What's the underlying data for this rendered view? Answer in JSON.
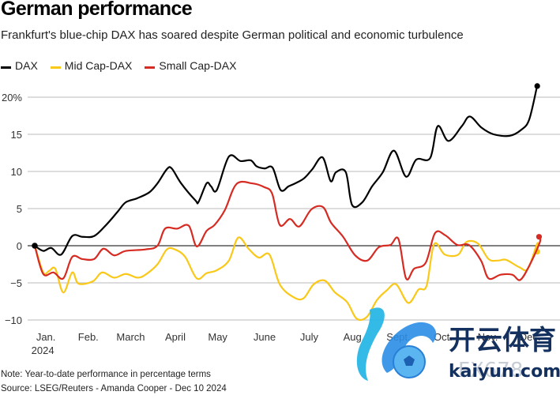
{
  "header": {
    "title": "German performance",
    "subtitle": "Frankfurt's blue-chip DAX has soared despite German political and economic turbulence"
  },
  "legend": [
    {
      "label": "DAX",
      "color": "#000000"
    },
    {
      "label": "Mid Cap-DAX",
      "color": "#f9c818"
    },
    {
      "label": "Small Cap-DAX",
      "color": "#d62b22"
    }
  ],
  "footer": {
    "note": "Note: Year-to-date performance in percentage terms",
    "source": "Source: LSEG/Reuters - Amanda Cooper - Dec 10 2024"
  },
  "watermark": {
    "brand_cn": "开云体育",
    "brand_en": "kaiyun.com",
    "overlay_text": "FX678"
  },
  "chart_data": {
    "type": "line",
    "title": "German performance",
    "subtitle": "Frankfurt's blue-chip DAX has soared despite German political and economic turbulence",
    "xlabel": "",
    "ylabel": "",
    "ylim": [
      -10,
      20
    ],
    "xlim": [
      0,
      11.3
    ],
    "yticks": [
      -10,
      -5,
      0,
      5,
      10,
      15,
      20
    ],
    "ytick_labels": [
      "−10",
      "−5",
      "0",
      "5",
      "10",
      "15",
      "20%"
    ],
    "xtick_positions": [
      0.25,
      1.2,
      2.15,
      3.15,
      4.1,
      5.15,
      6.15,
      7.15,
      8.15,
      9.15,
      10.15,
      11.1
    ],
    "xtick_labels": [
      "Jan.",
      "Feb.",
      "March",
      "April",
      "May",
      "June",
      "July",
      "Aug.",
      "Sept.",
      "Oct.",
      "Nov.",
      "Dec."
    ],
    "xtick_sublabels": [
      "2024",
      "",
      "",
      "",
      "",
      "",
      "",
      "",
      "",
      "",
      "",
      ""
    ],
    "grid": true,
    "legend_position": "top-left",
    "x_unit": "months since Jan 1 2024",
    "series": [
      {
        "name": "DAX",
        "color": "#000000",
        "x": [
          0,
          0.19,
          0.37,
          0.59,
          0.84,
          1.07,
          1.33,
          1.6,
          1.86,
          2.04,
          2.3,
          2.57,
          2.75,
          2.96,
          3.07,
          3.28,
          3.6,
          3.67,
          3.85,
          3.95,
          4.08,
          4.35,
          4.61,
          4.84,
          4.97,
          5.15,
          5.33,
          5.51,
          5.69,
          5.87,
          6.04,
          6.22,
          6.45,
          6.63,
          6.75,
          6.97,
          7.11,
          7.34,
          7.56,
          7.8,
          8.05,
          8.32,
          8.55,
          8.86,
          9.03,
          9.27,
          9.57,
          9.75,
          10.01,
          10.28,
          10.64,
          10.9,
          11.08,
          11.26
        ],
        "values": [
          0,
          -0.7,
          -0.3,
          -1.2,
          1.3,
          1.2,
          1.3,
          2.8,
          4.6,
          5.85,
          6.4,
          7.2,
          8.4,
          10.3,
          10.4,
          8.4,
          6.1,
          5.9,
          8.4,
          8.0,
          7.5,
          12.0,
          11.4,
          11.5,
          10.7,
          10.4,
          10.5,
          7.5,
          8.0,
          8.5,
          9.1,
          10.3,
          11.9,
          8.7,
          9.9,
          9.9,
          5.5,
          5.85,
          8.0,
          9.9,
          12.8,
          9.3,
          11.6,
          11.8,
          16.1,
          14.1,
          16.1,
          17.4,
          15.9,
          15.0,
          14.8,
          15.6,
          17.0,
          21.6
        ],
        "end_marker_value": 21.5
      },
      {
        "name": "Mid Cap-DAX",
        "color": "#f9c818",
        "x": [
          0,
          0.19,
          0.32,
          0.46,
          0.64,
          0.84,
          0.98,
          1.3,
          1.51,
          1.78,
          2.04,
          2.3,
          2.48,
          2.75,
          2.96,
          3.14,
          3.37,
          3.63,
          3.85,
          4.08,
          4.35,
          4.56,
          4.79,
          5.02,
          5.26,
          5.49,
          5.79,
          6.02,
          6.25,
          6.5,
          6.73,
          7.0,
          7.21,
          7.44,
          7.67,
          7.89,
          8.1,
          8.37,
          8.6,
          8.78,
          8.95,
          9.19,
          9.49,
          9.67,
          9.93,
          10.17,
          10.38,
          10.56,
          10.86,
          11.05,
          11.26,
          11.26
        ],
        "values": [
          0,
          -3.6,
          -3.4,
          -3.1,
          -6.3,
          -3.6,
          -5.1,
          -4.8,
          -3.6,
          -4.3,
          -3.8,
          -4.3,
          -3.9,
          -2.5,
          -0.5,
          -0.5,
          -1.5,
          -4.4,
          -3.7,
          -3.3,
          -2.0,
          1.1,
          -0.4,
          -1.6,
          -1.2,
          -5.2,
          -6.9,
          -7.1,
          -5.2,
          -4.7,
          -6.3,
          -7.6,
          -9.8,
          -9.6,
          -7.3,
          -6.0,
          -5.2,
          -7.7,
          -5.9,
          -5.4,
          0.2,
          -1.2,
          -1.2,
          0.5,
          0.3,
          -1.8,
          -2.0,
          -1.9,
          -2.9,
          -3.1,
          0.3,
          -0.7
        ],
        "end_marker_value": -0.8
      },
      {
        "name": "Small Cap-DAX",
        "color": "#d62b22",
        "x": [
          0,
          0.19,
          0.42,
          0.64,
          0.84,
          1.07,
          1.33,
          1.54,
          1.78,
          2.04,
          2.48,
          2.75,
          2.92,
          3.19,
          3.45,
          3.63,
          3.85,
          4.03,
          4.26,
          4.52,
          4.87,
          5.14,
          5.32,
          5.49,
          5.72,
          5.93,
          6.2,
          6.46,
          6.64,
          6.91,
          7.18,
          7.45,
          7.71,
          7.97,
          8.15,
          8.32,
          8.5,
          8.76,
          8.97,
          9.2,
          9.47,
          9.73,
          10.0,
          10.17,
          10.44,
          10.7,
          10.88,
          11.09,
          11.32,
          11.3
        ],
        "values": [
          0,
          -3.8,
          -3.6,
          -4.4,
          -1.5,
          -1.8,
          -1.8,
          -0.4,
          -1.3,
          -0.7,
          -0.5,
          0.0,
          2.3,
          2.3,
          2.7,
          -0.1,
          2.0,
          2.8,
          4.8,
          8.3,
          8.4,
          7.9,
          7.0,
          2.8,
          3.6,
          2.6,
          4.9,
          5.2,
          3.1,
          1.2,
          -1.3,
          -2.0,
          -0.2,
          0.1,
          0.9,
          -4.4,
          -3.1,
          -2.3,
          1.7,
          1.4,
          0.1,
          0.1,
          -2.0,
          -4.4,
          -3.9,
          -3.9,
          -4.6,
          -2.6,
          0.5,
          1.2
        ],
        "end_marker_value": 1.2
      }
    ]
  }
}
